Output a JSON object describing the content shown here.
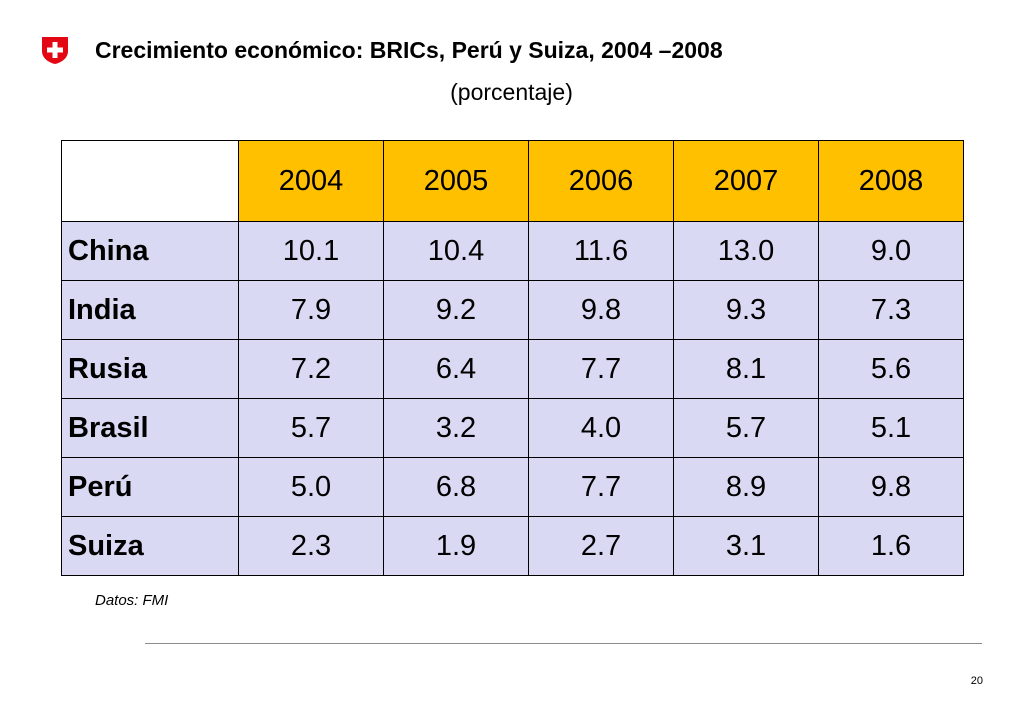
{
  "header": {
    "title": "Crecimiento económico: BRICs, Perú y Suiza, 2004 –2008",
    "subtitle": "(porcentaje)",
    "logo_icon": "swiss-cross-icon",
    "logo_color": "#E30613"
  },
  "table": {
    "columns": [
      "2004",
      "2005",
      "2006",
      "2007",
      "2008"
    ],
    "rows": [
      {
        "label": "China",
        "values": [
          "10.1",
          "10.4",
          "11.6",
          "13.0",
          "9.0"
        ]
      },
      {
        "label": "India",
        "values": [
          "7.9",
          "9.2",
          "9.8",
          "9.3",
          "7.3"
        ]
      },
      {
        "label": "Rusia",
        "values": [
          "7.2",
          "6.4",
          "7.7",
          "8.1",
          "5.6"
        ]
      },
      {
        "label": "Brasil",
        "values": [
          "5.7",
          "3.2",
          "4.0",
          "5.7",
          "5.1"
        ]
      },
      {
        "label": "Perú",
        "values": [
          "5.0",
          "6.8",
          "7.7",
          "8.9",
          "9.8"
        ]
      },
      {
        "label": "Suiza",
        "values": [
          "2.3",
          "1.9",
          "2.7",
          "3.1",
          "1.6"
        ]
      }
    ],
    "header_color": "#FFC000",
    "body_color": "#D9D9F3"
  },
  "footer": {
    "source": "Datos: FMI",
    "page_number": "20"
  }
}
